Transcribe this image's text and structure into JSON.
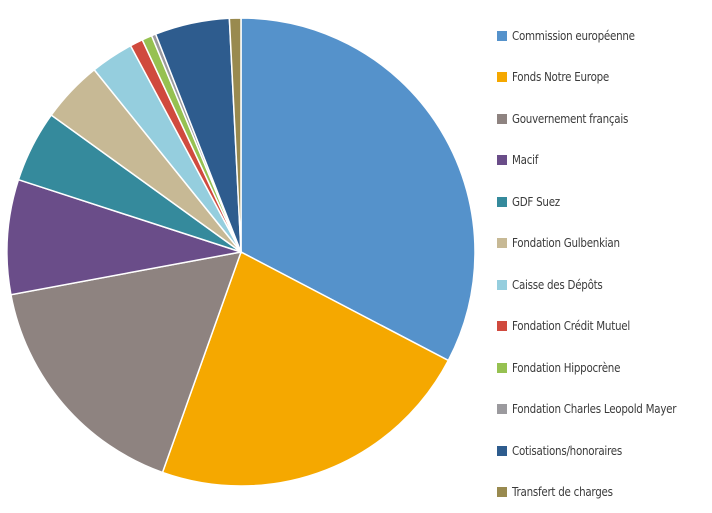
{
  "chart_data": {
    "type": "pie",
    "title": "",
    "legend_position": "right",
    "slices": [
      {
        "label": "Commission européenne",
        "value": 33.0,
        "color": "#5592CB"
      },
      {
        "label": "Fonds Notre Europe",
        "value": 23.0,
        "color": "#F5A800"
      },
      {
        "label": "Gouvernement français",
        "value": 16.8,
        "color": "#8E8380"
      },
      {
        "label": "Macif",
        "value": 8.0,
        "color": "#6A4D89"
      },
      {
        "label": "GDF Suez",
        "value": 5.0,
        "color": "#358A9C"
      },
      {
        "label": "Fondation Gulbenkian",
        "value": 4.3,
        "color": "#C7B995"
      },
      {
        "label": "Caisse des Dépôts",
        "value": 3.0,
        "color": "#95CEDE"
      },
      {
        "label": "Fondation Crédit Mutuel",
        "value": 0.9,
        "color": "#D04A3E"
      },
      {
        "label": "Fondation Hippocrène",
        "value": 0.7,
        "color": "#96C151"
      },
      {
        "label": "Fondation Charles Leopold Mayer",
        "value": 0.3,
        "color": "#9B9A9E"
      },
      {
        "label": "Cotisations/honoraires",
        "value": 5.2,
        "color": "#2E5C8E"
      },
      {
        "label": "Transfert de charges",
        "value": 0.8,
        "color": "#998A4F"
      }
    ]
  }
}
